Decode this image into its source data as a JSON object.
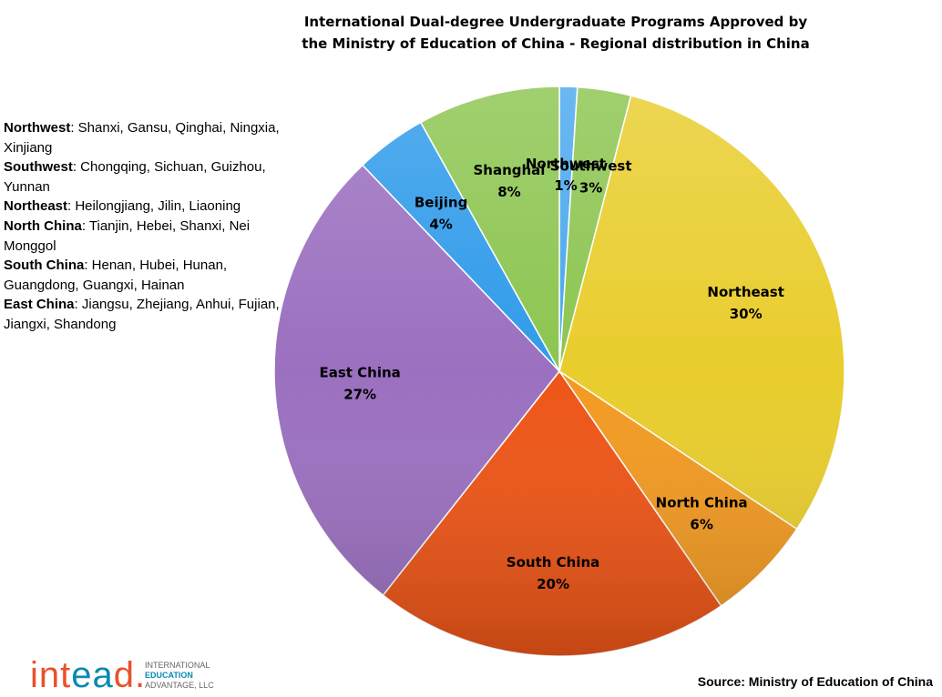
{
  "title_line1": "International Dual-degree Undergraduate Programs Approved by",
  "title_line2": "the Ministry of Education of China - Regional distribution in China",
  "legend": [
    {
      "name": "Northwest",
      "provinces": ": Shanxi, Gansu, Qinghai, Ningxia, Xinjiang"
    },
    {
      "name": "Southwest",
      "provinces": ": Chongqing, Sichuan, Guizhou, Yunnan"
    },
    {
      "name": "Northeast",
      "provinces": ": Heilongjiang, Jilin, Liaoning"
    },
    {
      "name": "North China",
      "provinces": ": Tianjin, Hebei, Shanxi, Nei Monggol"
    },
    {
      "name": "South China",
      "provinces": ": Henan, Hubei, Hunan, Guangdong, Guangxi, Hainan"
    },
    {
      "name": "East China",
      "provinces": ": Jiangsu, Zhejiang, Anhui, Fujian, Jiangxi, Shandong"
    }
  ],
  "chart_data": {
    "type": "pie",
    "title": "International Dual-degree Undergraduate Programs Approved by the Ministry of Education of China - Regional distribution in China",
    "slices": [
      {
        "label": "Northwest",
        "value": 1,
        "display": "1%",
        "color": "#4aa8ee"
      },
      {
        "label": "Southwest",
        "value": 3,
        "display": "3%",
        "color": "#8cc550"
      },
      {
        "label": "Northeast",
        "value": 30,
        "display": "30%",
        "color": "#e9cd2d"
      },
      {
        "label": "North China",
        "value": 6,
        "display": "6%",
        "color": "#f29a22"
      },
      {
        "label": "South China",
        "value": 20,
        "display": "20%",
        "color": "#ee5517"
      },
      {
        "label": "East China",
        "value": 27,
        "display": "27%",
        "color": "#9b70c0"
      },
      {
        "label": "Beijing",
        "value": 4,
        "display": "4%",
        "color": "#2f9bea"
      },
      {
        "label": "Shanghai",
        "value": 8,
        "display": "8%",
        "color": "#8cc550"
      }
    ]
  },
  "logo": {
    "word_part1": "int",
    "word_part2": "ea",
    "word_part3": "d.",
    "line1": "INTERNATIONAL",
    "line2": "EDUCATION",
    "line3": "ADVANTAGE, LLC"
  },
  "source": "Source: Ministry of Education of China"
}
